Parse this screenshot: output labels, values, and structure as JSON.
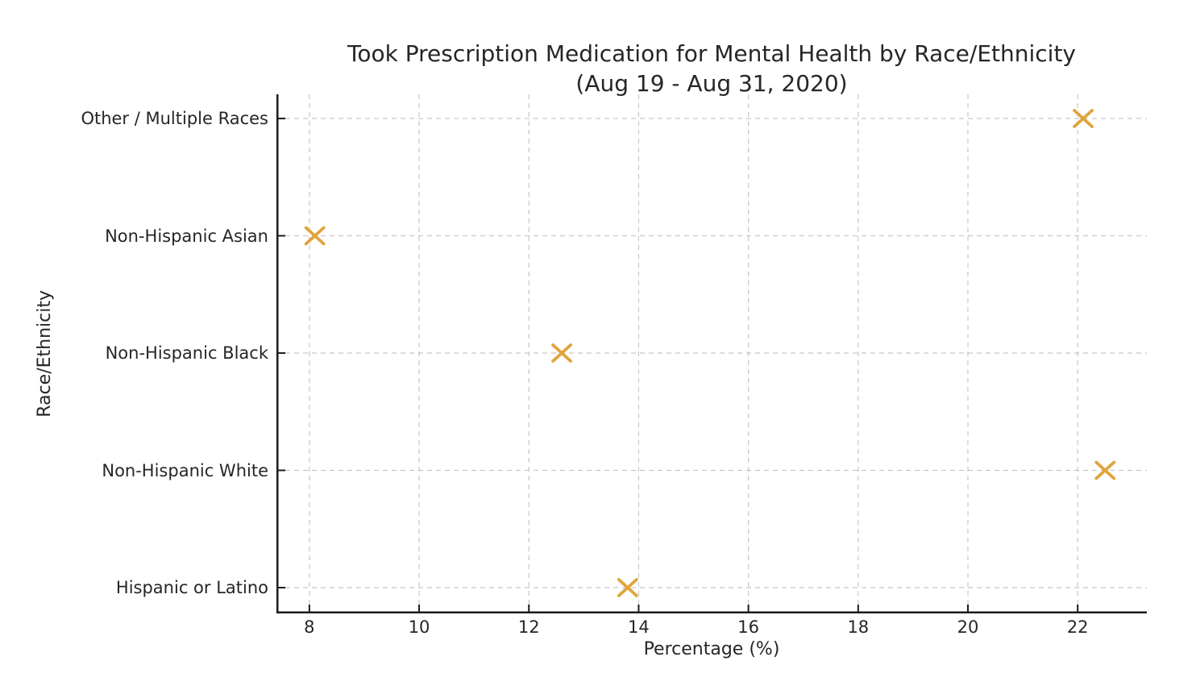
{
  "title_line1": "Took Prescription Medication for Mental Health by Race/Ethnicity",
  "title_line2": "(Aug 19 - Aug 31, 2020)",
  "chart_data": {
    "type": "scatter",
    "title": "Took Prescription Medication for Mental Health by Race/Ethnicity (Aug 19 - Aug 31, 2020)",
    "xlabel": "Percentage (%)",
    "ylabel": "Race/Ethnicity",
    "marker": "x",
    "marker_color": "#E0A43C",
    "categories": [
      "Other / Multiple Races",
      "Non-Hispanic Asian",
      "Non-Hispanic Black",
      "Non-Hispanic White",
      "Hispanic or Latino"
    ],
    "values": [
      22.1,
      8.1,
      12.6,
      22.5,
      13.8
    ],
    "x_ticks": [
      8,
      10,
      12,
      14,
      16,
      18,
      20,
      22
    ],
    "xlim": [
      7.4,
      23.26
    ],
    "grid": "dashed-both",
    "grid_color": "#c7c7c7",
    "axis_color": "#1c1c1c",
    "text_color": "#262626",
    "legend": "none"
  }
}
